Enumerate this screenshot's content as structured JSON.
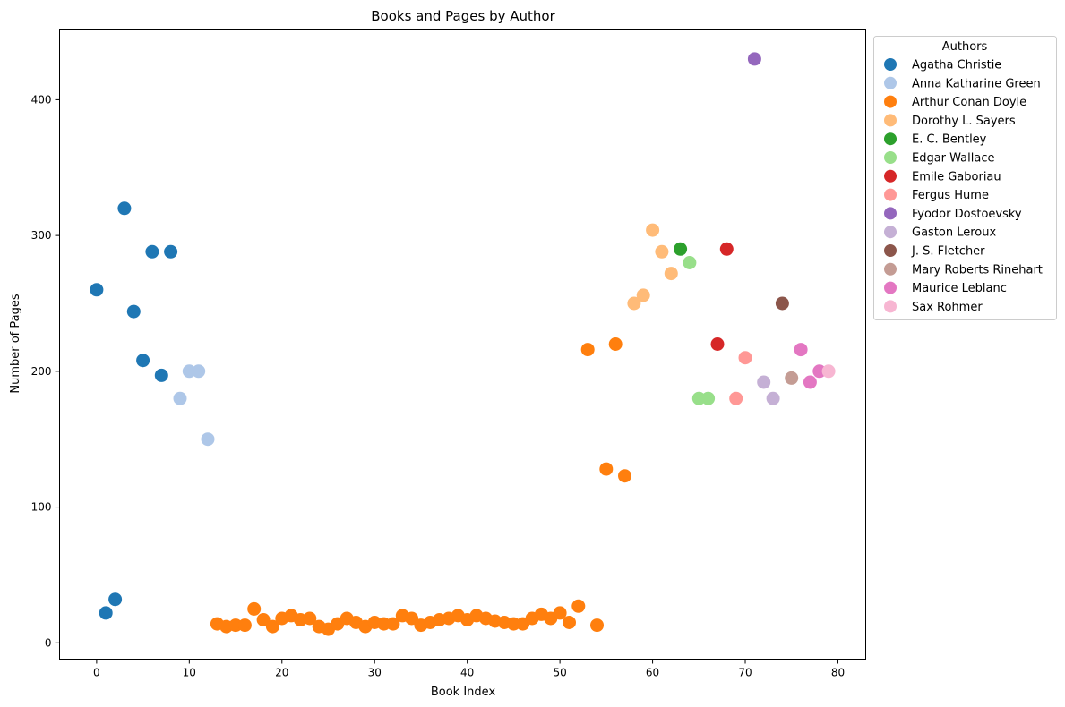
{
  "chart_data": {
    "type": "scatter",
    "title": "Books and Pages by Author",
    "xlabel": "Book Index",
    "ylabel": "Number of Pages",
    "xlim": [
      -4,
      83
    ],
    "ylim": [
      -12,
      452
    ],
    "x_ticks": [
      0,
      10,
      20,
      30,
      40,
      50,
      60,
      70,
      80
    ],
    "y_ticks": [
      0,
      100,
      200,
      300,
      400
    ],
    "grid": false,
    "legend": {
      "title": "Authors",
      "placement": "outside-top-right"
    },
    "series": [
      {
        "name": "Agatha Christie",
        "color": "#1f77b4",
        "x": [
          0,
          1,
          2,
          3,
          4,
          5,
          6,
          7,
          8
        ],
        "y": [
          260,
          22,
          32,
          320,
          244,
          208,
          288,
          197,
          288
        ]
      },
      {
        "name": "Anna Katharine Green",
        "color": "#aec7e8",
        "x": [
          9,
          10,
          11,
          12
        ],
        "y": [
          180,
          200,
          200,
          150
        ]
      },
      {
        "name": "Arthur Conan Doyle",
        "color": "#ff7f0e",
        "x": [
          13,
          14,
          15,
          16,
          17,
          18,
          19,
          20,
          21,
          22,
          23,
          24,
          25,
          26,
          27,
          28,
          29,
          30,
          31,
          32,
          33,
          34,
          35,
          36,
          37,
          38,
          39,
          40,
          41,
          42,
          43,
          44,
          45,
          46,
          47,
          48,
          49,
          50,
          51,
          52,
          53,
          54,
          55,
          56,
          57
        ],
        "y": [
          14,
          12,
          13,
          13,
          25,
          17,
          12,
          18,
          20,
          17,
          18,
          12,
          10,
          14,
          18,
          15,
          12,
          15,
          14,
          14,
          20,
          18,
          13,
          15,
          17,
          18,
          20,
          17,
          20,
          18,
          16,
          15,
          14,
          14,
          18,
          21,
          18,
          22,
          15,
          27,
          216,
          13,
          128,
          220,
          123
        ]
      },
      {
        "name": "Dorothy L. Sayers",
        "color": "#ffbb78",
        "x": [
          58,
          59,
          60,
          61,
          62
        ],
        "y": [
          250,
          256,
          304,
          288,
          272
        ]
      },
      {
        "name": "E. C. Bentley",
        "color": "#2ca02c",
        "x": [
          63
        ],
        "y": [
          290
        ]
      },
      {
        "name": "Edgar Wallace",
        "color": "#98df8a",
        "x": [
          64,
          65,
          66
        ],
        "y": [
          280,
          180,
          180
        ]
      },
      {
        "name": "Emile Gaboriau",
        "color": "#d62728",
        "x": [
          67,
          68
        ],
        "y": [
          220,
          290
        ]
      },
      {
        "name": "Fergus Hume",
        "color": "#ff9896",
        "x": [
          69,
          70
        ],
        "y": [
          180,
          210
        ]
      },
      {
        "name": "Fyodor Dostoevsky",
        "color": "#9467bd",
        "x": [
          71
        ],
        "y": [
          430
        ]
      },
      {
        "name": "Gaston Leroux",
        "color": "#c5b0d5",
        "x": [
          72,
          73
        ],
        "y": [
          192,
          180
        ]
      },
      {
        "name": "J. S. Fletcher",
        "color": "#8c564b",
        "x": [
          74
        ],
        "y": [
          250
        ]
      },
      {
        "name": "Mary Roberts Rinehart",
        "color": "#c49c94",
        "x": [
          75
        ],
        "y": [
          195
        ]
      },
      {
        "name": "Maurice Leblanc",
        "color": "#e377c2",
        "x": [
          76,
          77,
          78
        ],
        "y": [
          216,
          192,
          200
        ]
      },
      {
        "name": "Sax Rohmer",
        "color": "#f7b6d2",
        "x": [
          79
        ],
        "y": [
          200
        ]
      }
    ]
  }
}
